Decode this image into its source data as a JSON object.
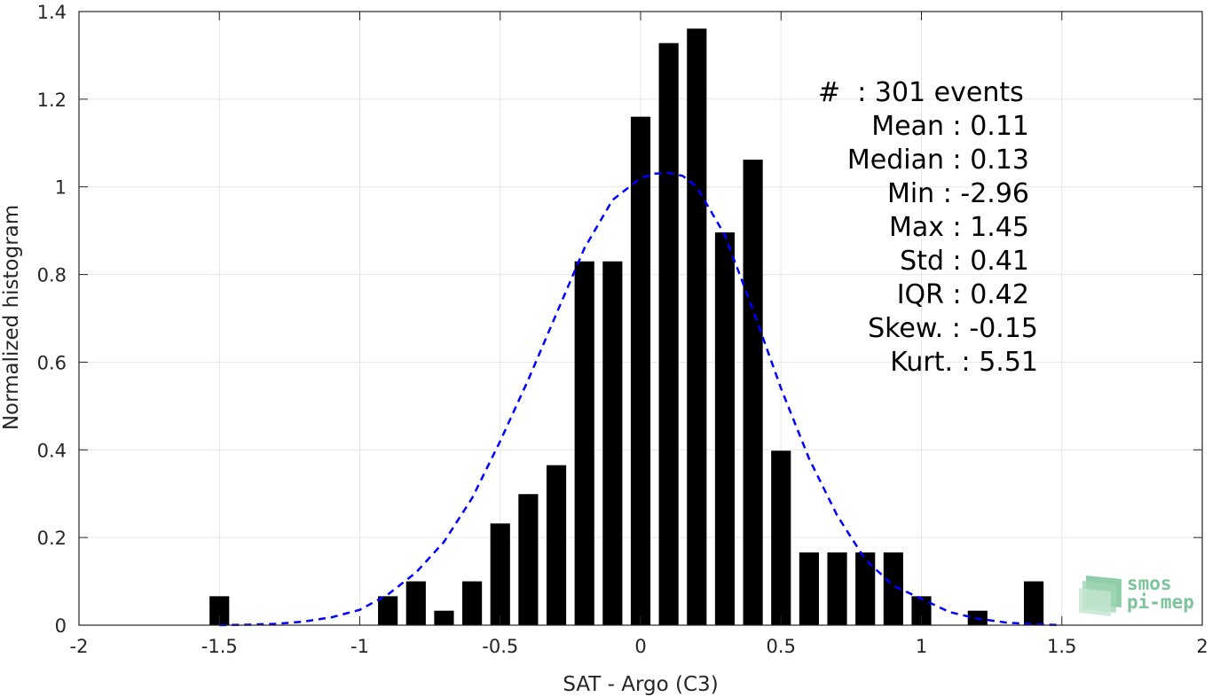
{
  "chart_data": {
    "type": "bar",
    "xlabel": "SAT - Argo (C3)",
    "ylabel": "Normalized histogram",
    "xlim": [
      -2,
      2
    ],
    "ylim": [
      0,
      1.4
    ],
    "xticks": [
      "-2",
      "-1.5",
      "-1",
      "-0.5",
      "0",
      "0.5",
      "1",
      "1.5",
      "2"
    ],
    "yticks": [
      "0",
      "0.2",
      "0.4",
      "0.6",
      "0.8",
      "1",
      "1.2",
      "1.4"
    ],
    "grid": true,
    "bar_width": 0.07,
    "series": [
      {
        "x": [
          -1.5,
          -0.9,
          -0.8,
          -0.7,
          -0.6,
          -0.5,
          -0.4,
          -0.3,
          -0.2,
          -0.1,
          0.0,
          0.1,
          0.2,
          0.3,
          0.4,
          0.5,
          0.6,
          0.7,
          0.8,
          0.9,
          1.0,
          1.2,
          1.4
        ],
        "values": [
          0.066,
          0.066,
          0.1,
          0.033,
          0.1,
          0.232,
          0.299,
          0.365,
          0.83,
          0.83,
          1.16,
          1.328,
          1.361,
          0.896,
          1.062,
          0.398,
          0.166,
          0.166,
          0.166,
          0.166,
          0.066,
          0.033,
          0.1
        ],
        "color": "#000000"
      }
    ],
    "fit_curve": {
      "style": "dashed",
      "color": "#0000ff",
      "x": [
        -1.5,
        -1.4,
        -1.3,
        -1.2,
        -1.1,
        -1.0,
        -0.9,
        -0.8,
        -0.7,
        -0.6,
        -0.5,
        -0.4,
        -0.3,
        -0.2,
        -0.1,
        0.0,
        0.05,
        0.1,
        0.15,
        0.2,
        0.3,
        0.4,
        0.5,
        0.6,
        0.7,
        0.8,
        0.9,
        1.0,
        1.1,
        1.2,
        1.3,
        1.4,
        1.5
      ],
      "y": [
        0.0,
        0.001,
        0.003,
        0.008,
        0.018,
        0.035,
        0.07,
        0.12,
        0.19,
        0.29,
        0.42,
        0.56,
        0.71,
        0.86,
        0.97,
        1.02,
        1.03,
        1.032,
        1.025,
        1.0,
        0.89,
        0.72,
        0.54,
        0.38,
        0.25,
        0.15,
        0.09,
        0.06,
        0.03,
        0.015,
        0.006,
        0.002,
        0.0
      ]
    }
  },
  "stats": {
    "count": "#  : 301 events",
    "mean": "Mean : 0.11",
    "median": "Median : 0.13",
    "min": "Min : -2.96",
    "max": "Max : 1.45",
    "std": "Std : 0.41",
    "iqr": "IQR : 0.42",
    "skew": "Skew. : -0.15",
    "kurt": "Kurt. : 5.51"
  },
  "logo": {
    "line1": "smos",
    "line2": "pi-mep",
    "color": "#7cc49a"
  }
}
